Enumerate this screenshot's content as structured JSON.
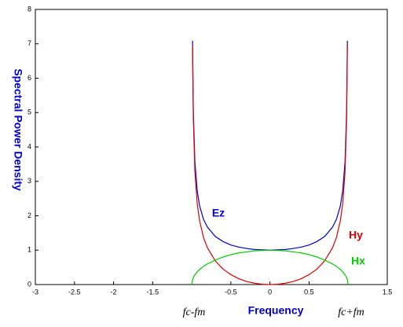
{
  "chart_data": {
    "type": "line",
    "xlabel": "Frequency",
    "ylabel": "Spectral Power Density",
    "x": [
      -1,
      -0.99,
      -0.98,
      -0.96,
      -0.93,
      -0.9,
      -0.85,
      -0.8,
      -0.7,
      -0.6,
      -0.5,
      -0.4,
      -0.3,
      -0.2,
      -0.1,
      0,
      0.1,
      0.2,
      0.3,
      0.4,
      0.5,
      0.6,
      0.7,
      0.8,
      0.85,
      0.9,
      0.93,
      0.96,
      0.98,
      0.99,
      1
    ],
    "series": [
      {
        "name": "Ez",
        "color": "#0000cc",
        "values": [
          null,
          7.09,
          5.03,
          3.57,
          2.72,
          2.29,
          1.9,
          1.67,
          1.4,
          1.25,
          1.15,
          1.09,
          1.05,
          1.02,
          1.01,
          1,
          1.01,
          1.02,
          1.05,
          1.09,
          1.15,
          1.25,
          1.4,
          1.67,
          1.9,
          2.29,
          2.72,
          3.57,
          5.03,
          7.09,
          null
        ]
      },
      {
        "name": "Hy",
        "color": "#dd0000",
        "values": [
          null,
          6.95,
          4.83,
          3.29,
          2.35,
          1.86,
          1.37,
          1.07,
          0.69,
          0.45,
          0.29,
          0.17,
          0.09,
          0.04,
          0.01,
          0,
          0.01,
          0.04,
          0.09,
          0.17,
          0.29,
          0.45,
          0.69,
          1.07,
          1.37,
          1.86,
          2.35,
          3.29,
          4.83,
          6.95,
          null
        ]
      },
      {
        "name": "Hx",
        "color": "#00cc00",
        "values": [
          0,
          0.14,
          0.2,
          0.28,
          0.37,
          0.44,
          0.53,
          0.6,
          0.71,
          0.8,
          0.87,
          0.92,
          0.95,
          0.98,
          0.99,
          1,
          0.99,
          0.98,
          0.95,
          0.92,
          0.87,
          0.8,
          0.71,
          0.6,
          0.53,
          0.44,
          0.37,
          0.28,
          0.2,
          0.14,
          0
        ]
      }
    ],
    "annotations": [
      "fc-fm",
      "fc+fm"
    ],
    "xlim": [
      -3,
      1.5
    ],
    "xticks": [
      -3,
      -2.5,
      -2,
      -1.5,
      -0.5,
      0,
      0.5,
      1.5
    ],
    "ylim": [
      0,
      8
    ],
    "yticks": [
      0,
      1,
      2,
      3,
      4,
      5,
      6,
      7,
      8
    ]
  }
}
